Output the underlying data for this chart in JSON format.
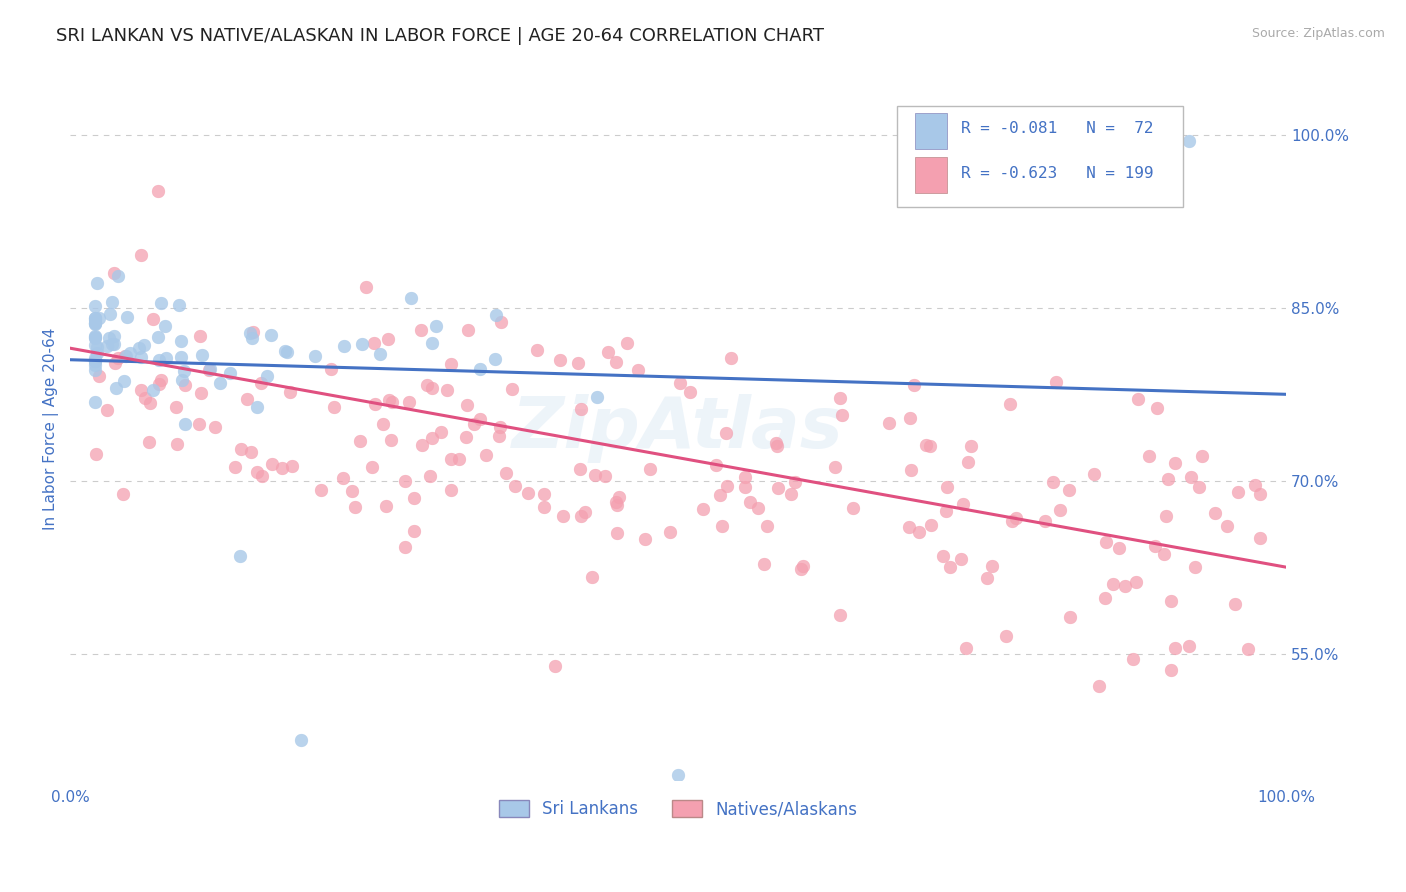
{
  "title": "SRI LANKAN VS NATIVE/ALASKAN IN LABOR FORCE | AGE 20-64 CORRELATION CHART",
  "source_text": "Source: ZipAtlas.com",
  "ylabel": "In Labor Force | Age 20-64",
  "legend_label_1": "Sri Lankans",
  "legend_label_2": "Natives/Alaskans",
  "legend_R1": "R = -0.081",
  "legend_N1": "N =  72",
  "legend_R2": "R = -0.623",
  "legend_N2": "N = 199",
  "R1": -0.081,
  "R2": -0.623,
  "N1": 72,
  "N2": 199,
  "color_blue": "#a8c8e8",
  "color_pink": "#f4a0b0",
  "color_blue_line": "#4472C4",
  "color_pink_line": "#e05080",
  "color_text_blue": "#4472C4",
  "background_color": "#ffffff",
  "grid_color": "#cccccc",
  "watermark_text": "ZipAtlas",
  "title_fontsize": 13,
  "axis_label_fontsize": 11,
  "tick_fontsize": 11,
  "xmin": 0.0,
  "xmax": 1.0,
  "ymin": 0.44,
  "ymax": 1.05,
  "yticks": [
    0.55,
    0.7,
    0.85,
    1.0
  ],
  "yticklabels": [
    "55.0%",
    "70.0%",
    "85.0%",
    "100.0%"
  ],
  "trend_blue_y0": 0.805,
  "trend_blue_y1": 0.775,
  "trend_pink_y0": 0.815,
  "trend_pink_y1": 0.625
}
